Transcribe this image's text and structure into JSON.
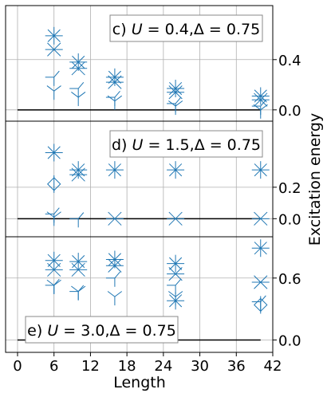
{
  "chart_data": {
    "type": "scatter",
    "xlabel": "Length",
    "ylabel": "Excitation energy",
    "xlim": [
      -2,
      42
    ],
    "xticks": [
      0,
      6,
      12,
      18,
      24,
      30,
      36,
      42
    ],
    "xtick_labels": [
      "0",
      "6",
      "12",
      "18",
      "24",
      "30",
      "36",
      "42"
    ],
    "marker_color": "#1f77b4",
    "grid": true,
    "panels": [
      {
        "id": "c",
        "title": "c) U = 0.4,Δ = 0.75",
        "label_prefix": "c)",
        "U": "0.4",
        "Delta": "0.75",
        "legend_position": "top-right",
        "ylim": [
          -0.09,
          0.83
        ],
        "yticks": [
          0.0,
          0.4
        ],
        "ytick_labels": [
          "0.0",
          "0.4"
        ],
        "reference_line": {
          "y": 0.0,
          "x": [
            0,
            40
          ]
        },
        "points": [
          {
            "x": 6,
            "y": 0.59
          },
          {
            "x": 6,
            "y": 0.48
          },
          {
            "x": 6,
            "y": 0.26
          },
          {
            "x": 6,
            "y": 0.15
          },
          {
            "x": 10,
            "y": 0.38
          },
          {
            "x": 10,
            "y": 0.33
          },
          {
            "x": 10,
            "y": 0.17
          },
          {
            "x": 10,
            "y": 0.1
          },
          {
            "x": 16,
            "y": 0.26
          },
          {
            "x": 16,
            "y": 0.22
          },
          {
            "x": 16,
            "y": 0.1
          },
          {
            "x": 16,
            "y": 0.07
          },
          {
            "x": 26,
            "y": 0.17
          },
          {
            "x": 26,
            "y": 0.14
          },
          {
            "x": 26,
            "y": 0.05
          },
          {
            "x": 26,
            "y": 0.03
          },
          {
            "x": 40,
            "y": 0.11
          },
          {
            "x": 40,
            "y": 0.08
          },
          {
            "x": 40,
            "y": 0.03
          },
          {
            "x": 40,
            "y": 0.0
          }
        ]
      },
      {
        "id": "d",
        "title": "d) U = 1.5,Δ = 0.75",
        "label_prefix": "d)",
        "U": "1.5",
        "Delta": "0.75",
        "legend_position": "top-right",
        "ylim": [
          -0.115,
          0.62
        ],
        "yticks": [
          0.0,
          0.2
        ],
        "ytick_labels": [
          "0.0",
          "0.2"
        ],
        "reference_line": {
          "y": 0.0,
          "x": [
            0,
            40
          ]
        },
        "points": [
          {
            "x": 6,
            "y": 0.42
          },
          {
            "x": 6,
            "y": 0.22
          },
          {
            "x": 6,
            "y": 0.03
          },
          {
            "x": 6,
            "y": 0.01
          },
          {
            "x": 10,
            "y": 0.31
          },
          {
            "x": 10,
            "y": 0.28
          },
          {
            "x": 10,
            "y": 0.0
          },
          {
            "x": 16,
            "y": 0.31
          },
          {
            "x": 16,
            "y": 0.0
          },
          {
            "x": 26,
            "y": 0.31
          },
          {
            "x": 26,
            "y": 0.0
          },
          {
            "x": 40,
            "y": 0.31
          },
          {
            "x": 40,
            "y": 0.0
          }
        ]
      },
      {
        "id": "e",
        "title": "e) U = 3.0,Δ = 0.75",
        "label_prefix": "e)",
        "U": "3.0",
        "Delta": "0.75",
        "legend_position": "bottom-left",
        "ylim": [
          -0.12,
          1.0
        ],
        "yticks": [
          0.0,
          0.6
        ],
        "ytick_labels": [
          "0.0",
          "0.6"
        ],
        "reference_line": {
          "y": 0.0,
          "x": [
            0,
            40
          ]
        },
        "points": [
          {
            "x": 6,
            "y": 0.77
          },
          {
            "x": 6,
            "y": 0.68
          },
          {
            "x": 6,
            "y": 0.53
          },
          {
            "x": 6,
            "y": 0.53
          },
          {
            "x": 10,
            "y": 0.76
          },
          {
            "x": 10,
            "y": 0.68
          },
          {
            "x": 10,
            "y": 0.47
          },
          {
            "x": 10,
            "y": 0.47
          },
          {
            "x": 16,
            "y": 0.78
          },
          {
            "x": 16,
            "y": 0.72
          },
          {
            "x": 16,
            "y": 0.6
          },
          {
            "x": 16,
            "y": 0.42
          },
          {
            "x": 26,
            "y": 0.74
          },
          {
            "x": 26,
            "y": 0.64
          },
          {
            "x": 26,
            "y": 0.53
          },
          {
            "x": 26,
            "y": 0.42
          },
          {
            "x": 26,
            "y": 0.38
          },
          {
            "x": 40,
            "y": 0.89
          },
          {
            "x": 40,
            "y": 0.56
          },
          {
            "x": 40,
            "y": 0.37
          },
          {
            "x": 40,
            "y": 0.34
          }
        ]
      }
    ]
  }
}
